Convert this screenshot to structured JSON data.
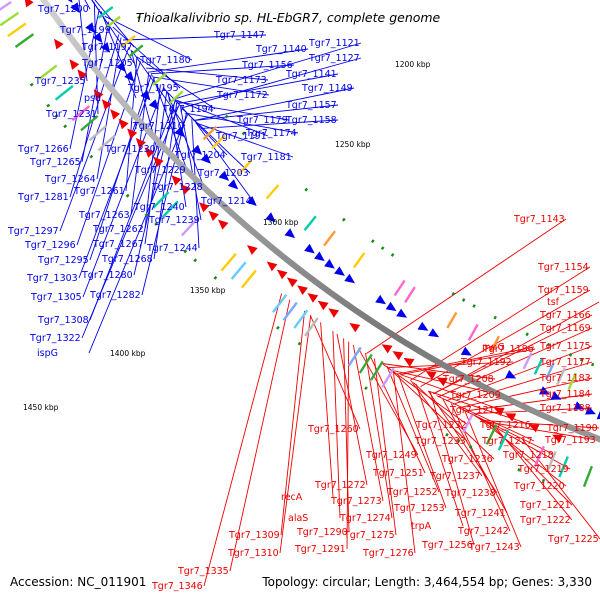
{
  "title": "Thioalkalivibrio sp. HL-EbGR7, complete genome",
  "footer": {
    "accession": "Accession: NC_011901",
    "summary": "Topology: circular; Length: 3,464,554 bp; Genes: 3,330"
  },
  "scale_labels": [
    "1200 kbp",
    "1250 kbp",
    "1300 kbp",
    "1350 kbp",
    "1400 kbp",
    "1450 kbp"
  ],
  "colors": {
    "forward_strand": "#0000ee",
    "reverse_strand": "#ee0000",
    "backbone": "#808080",
    "tick": "#1a8c1a"
  },
  "forward_genes": [
    "Tgr7_1200",
    "Tgr7_1199",
    "Tgr7_1197",
    "Tgr7_1205",
    "Tgr7_1180",
    "Tgr7_1235",
    "psd",
    "Tgr7_1195",
    "Tgr7_1231",
    "Tgr7_1194",
    "Tgr7_1210",
    "Tgr7_1147",
    "Tgr7_1140",
    "Tgr7_1121",
    "Tgr7_1156",
    "Tgr7_1127",
    "Tgr7_1173",
    "Tgr7_1141",
    "Tgr7_1172",
    "Tgr7_1149",
    "Tgr7_1157",
    "Tgr7_1179",
    "Tgr7_1158",
    "Tgr7_1191",
    "Tgr7_1174",
    "Tgr7_1230",
    "Tgr7_1204",
    "Tgr7_1181",
    "Tgr7_1266",
    "Tgr7_1229",
    "Tgr7_1203",
    "Tgr7_1265",
    "Tgr7_1264",
    "Tgr7_1228",
    "Tgr7_1261",
    "Tgr7_1281",
    "Tgr7_1214",
    "Tgr7_1240",
    "Tgr7_1263",
    "Tgr7_1239",
    "Tgr7_1262",
    "Tgr7_1297",
    "Tgr7_1267",
    "Tgr7_1296",
    "Tgr7_1244",
    "Tgr7_1268",
    "Tgr7_1295",
    "Tgr7_1280",
    "Tgr7_1303",
    "Tgr7_1282",
    "Tgr7_1305",
    "Tgr7_1308",
    "Tgr7_1322",
    "ispG"
  ],
  "reverse_genes": [
    "Tgr7_1143",
    "Tgr7_1154",
    "Tgr7_1159",
    "tsf",
    "Tgr7_1166",
    "Tgr7_1169",
    "pvrG",
    "Tgr7_1186",
    "Tgr7_1175",
    "Tgr7_1192",
    "Tgr7_1177",
    "Tgr7_1208",
    "Tgr7_1183",
    "Tgr7_1209",
    "Tgr7_1184",
    "Tgr7_1215",
    "Tgr7_1188",
    "Tgr7_1232",
    "Tgr7_1216",
    "Tgr7_1190",
    "Tgr7_1233",
    "Tgr7_1217",
    "Tgr7_1193",
    "Tgr7_1260",
    "Tgr7_1236",
    "Tgr7_1218",
    "Tgr7_1249",
    "Tgr7_1237",
    "Tgr7_1219",
    "Tgr7_1251",
    "Tgr7_1238",
    "Tgr7_1220",
    "Tgr7_1252",
    "Tgr7_1272",
    "Tgr7_1221",
    "Tgr7_1241",
    "Tgr7_1273",
    "Tgr7_1253",
    "Tgr7_1222",
    "Tgr7_1274",
    "Tgr7_1242",
    "recA",
    "trpA",
    "Tgr7_1275",
    "Tgr7_1243",
    "Tgr7_1225",
    "alaS",
    "Tgr7_1256",
    "Tgr7_1290",
    "Tgr7_1276",
    "Tgr7_1309",
    "Tgr7_1291",
    "Tgr7_1310",
    "Tgr7_1335",
    "Tgr7_1346"
  ]
}
